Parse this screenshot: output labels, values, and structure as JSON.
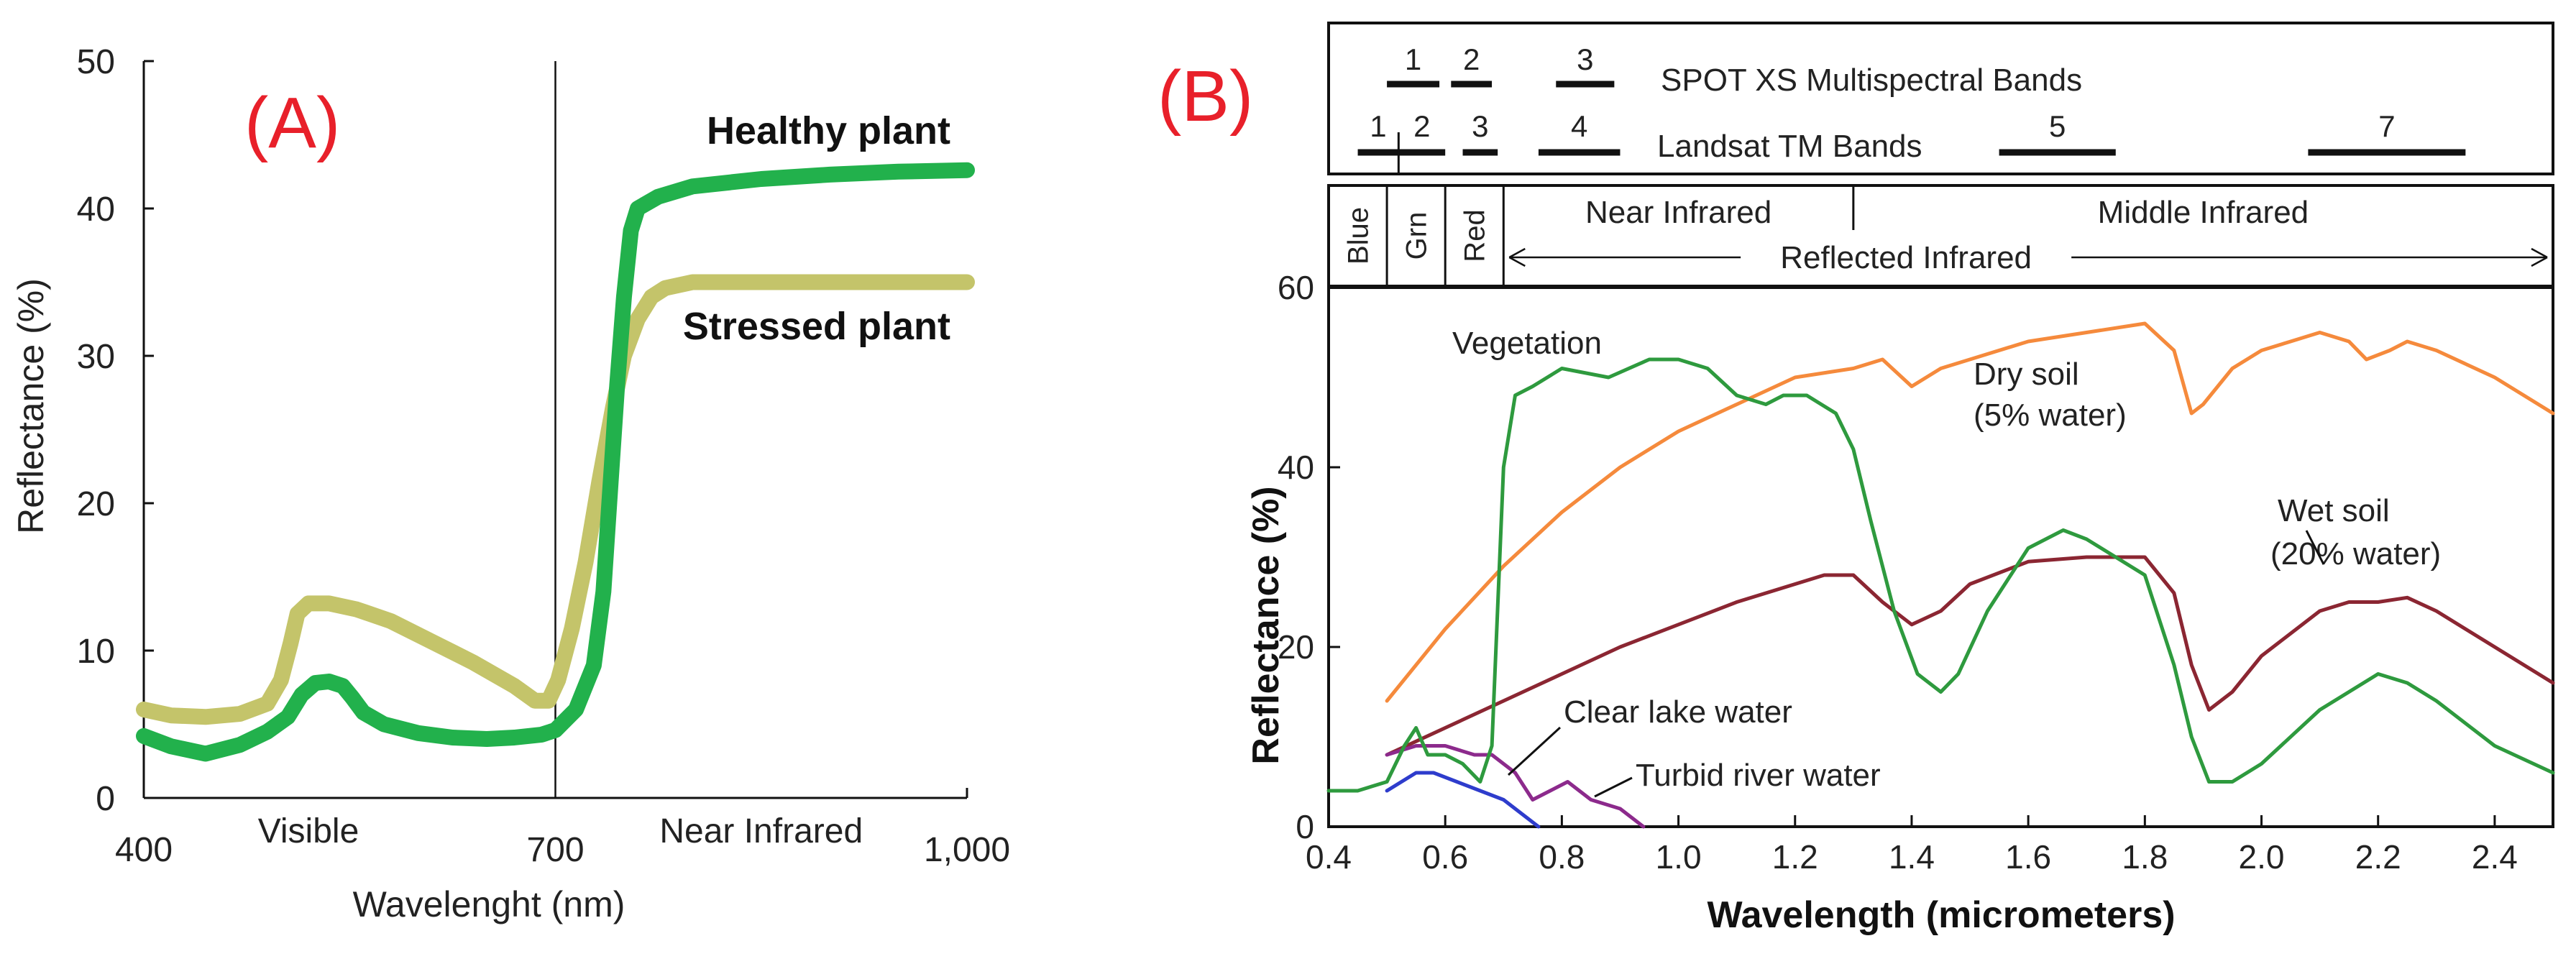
{
  "chart_data": [
    {
      "type": "line",
      "panel_label": "(A)",
      "xlabel": "Wavelenght (nm)",
      "ylabel": "Reflectance (%)",
      "xlim": [
        400,
        1000
      ],
      "ylim": [
        0,
        50
      ],
      "x_ticks": [
        400,
        700,
        1000
      ],
      "x_tick_labels": [
        "400",
        "700",
        "1,000"
      ],
      "y_ticks": [
        0,
        10,
        20,
        30,
        40,
        50
      ],
      "y_tick_labels": [
        "0",
        "10",
        "20",
        "30",
        "40",
        "50"
      ],
      "region_labels": [
        {
          "text": "Visible",
          "x": 520
        },
        {
          "text": "Near Infrared",
          "x": 850
        }
      ],
      "divider_x": 700,
      "series": [
        {
          "name": "Healthy plant",
          "color": "#22b14c",
          "x": [
            400,
            420,
            445,
            470,
            490,
            505,
            515,
            525,
            535,
            545,
            552,
            560,
            575,
            600,
            625,
            650,
            670,
            690,
            700,
            715,
            728,
            735,
            740,
            745,
            750,
            755,
            760,
            775,
            800,
            850,
            900,
            950,
            1000
          ],
          "values": [
            4.2,
            3.5,
            3.0,
            3.6,
            4.5,
            5.5,
            7.0,
            7.8,
            7.9,
            7.6,
            6.8,
            5.8,
            5.0,
            4.4,
            4.1,
            4.0,
            4.1,
            4.3,
            4.6,
            6.0,
            9.0,
            14.0,
            21.0,
            28.0,
            34.0,
            38.5,
            40.0,
            40.8,
            41.5,
            42.0,
            42.3,
            42.5,
            42.6
          ]
        },
        {
          "name": "Stressed plant",
          "color": "#c4c46a",
          "x": [
            400,
            420,
            445,
            470,
            490,
            500,
            507,
            512,
            520,
            535,
            555,
            580,
            610,
            640,
            670,
            685,
            695,
            702,
            712,
            722,
            732,
            742,
            750,
            760,
            770,
            780,
            800,
            850,
            900,
            1000
          ],
          "values": [
            6.0,
            5.6,
            5.5,
            5.7,
            6.4,
            8.0,
            10.5,
            12.5,
            13.2,
            13.2,
            12.8,
            12.0,
            10.6,
            9.2,
            7.6,
            6.6,
            6.6,
            8.0,
            11.5,
            16.0,
            21.5,
            26.5,
            30.0,
            32.5,
            34.0,
            34.6,
            35.0,
            35.0,
            35.0,
            35.0
          ]
        }
      ]
    },
    {
      "type": "line",
      "panel_label": "(B)",
      "xlabel": "Wavelength (micrometers)",
      "ylabel": "Reflectance (%)",
      "xlim": [
        0.4,
        2.5
      ],
      "ylim": [
        0,
        60
      ],
      "x_ticks": [
        0.4,
        0.6,
        0.8,
        1.0,
        1.2,
        1.4,
        1.6,
        1.8,
        2.0,
        2.2,
        2.4
      ],
      "x_tick_labels": [
        "0.4",
        "0.6",
        "0.8",
        "1.0",
        "1.2",
        "1.4",
        "1.6",
        "1.8",
        "2.0",
        "2.2",
        "2.4"
      ],
      "y_ticks": [
        0,
        20,
        40,
        60
      ],
      "y_tick_labels": [
        "0",
        "20",
        "40",
        "60"
      ],
      "spot_bands": {
        "title": "SPOT XS Multispectral Bands",
        "bands": [
          {
            "label": "1",
            "start": 0.5,
            "end": 0.59
          },
          {
            "label": "2",
            "start": 0.61,
            "end": 0.68
          },
          {
            "label": "3",
            "start": 0.79,
            "end": 0.89
          }
        ]
      },
      "landsat_bands": {
        "title": "Landsat TM Bands",
        "bands": [
          {
            "label": "1",
            "start": 0.45,
            "end": 0.52
          },
          {
            "label": "2",
            "start": 0.52,
            "end": 0.6
          },
          {
            "label": "3",
            "start": 0.63,
            "end": 0.69
          },
          {
            "label": "4",
            "start": 0.76,
            "end": 0.9
          },
          {
            "label": "5",
            "start": 1.55,
            "end": 1.75
          },
          {
            "label": "7",
            "start": 2.08,
            "end": 2.35
          }
        ]
      },
      "spectral_regions": {
        "blue": "Blue",
        "green": "Grn",
        "red": "Red",
        "near_infrared": "Near Infrared",
        "middle_infrared": "Middle Infrared",
        "reflected_infrared": "Reflected Infrared"
      },
      "region_bounds": [
        0.4,
        0.5,
        0.6,
        0.7,
        1.3,
        2.5
      ],
      "series": [
        {
          "name": "Vegetation",
          "color": "#2e9a3e",
          "x": [
            0.4,
            0.45,
            0.5,
            0.53,
            0.55,
            0.57,
            0.6,
            0.63,
            0.66,
            0.68,
            0.7,
            0.72,
            0.75,
            0.8,
            0.88,
            0.95,
            1.0,
            1.05,
            1.1,
            1.15,
            1.18,
            1.22,
            1.27,
            1.3,
            1.33,
            1.37,
            1.41,
            1.45,
            1.48,
            1.53,
            1.6,
            1.66,
            1.7,
            1.75,
            1.8,
            1.85,
            1.88,
            1.91,
            1.95,
            2.0,
            2.1,
            2.2,
            2.25,
            2.3,
            2.4,
            2.5
          ],
          "values": [
            4,
            4,
            5,
            9,
            11,
            8,
            8,
            7,
            5,
            9,
            40,
            48,
            49,
            51,
            50,
            52,
            52,
            51,
            48,
            47,
            48,
            48,
            46,
            42,
            34,
            24,
            17,
            15,
            17,
            24,
            31,
            33,
            32,
            30,
            28,
            18,
            10,
            5,
            5,
            7,
            13,
            17,
            16,
            14,
            9,
            6
          ]
        },
        {
          "name": "Dry soil",
          "label": "Dry soil",
          "sublabel": "(5% water)",
          "color": "#f58a3c",
          "x": [
            0.5,
            0.6,
            0.7,
            0.8,
            0.9,
            1.0,
            1.1,
            1.2,
            1.3,
            1.35,
            1.4,
            1.45,
            1.5,
            1.6,
            1.7,
            1.8,
            1.85,
            1.88,
            1.9,
            1.95,
            2.0,
            2.05,
            2.1,
            2.15,
            2.18,
            2.22,
            2.25,
            2.3,
            2.4,
            2.5
          ],
          "values": [
            14,
            22,
            29,
            35,
            40,
            44,
            47,
            50,
            51,
            52,
            49,
            51,
            52,
            54,
            55,
            56,
            53,
            46,
            47,
            51,
            53,
            54,
            55,
            54,
            52,
            53,
            54,
            53,
            50,
            46
          ]
        },
        {
          "name": "Wet soil",
          "label": "Wet soil",
          "sublabel": "(20% water)",
          "color": "#8b2632",
          "x": [
            0.5,
            0.6,
            0.7,
            0.8,
            0.9,
            1.0,
            1.1,
            1.2,
            1.25,
            1.3,
            1.35,
            1.4,
            1.45,
            1.5,
            1.6,
            1.7,
            1.8,
            1.85,
            1.88,
            1.91,
            1.95,
            2.0,
            2.1,
            2.15,
            2.2,
            2.25,
            2.3,
            2.4,
            2.5
          ],
          "values": [
            8,
            11,
            14,
            17,
            20,
            22.5,
            25,
            27,
            28,
            28,
            25,
            22.5,
            24,
            27,
            29.5,
            30,
            30,
            26,
            18,
            13,
            15,
            19,
            24,
            25,
            25,
            25.5,
            24,
            20,
            16
          ]
        },
        {
          "name": "Clear lake water",
          "color": "#2e3ccc",
          "x": [
            0.5,
            0.55,
            0.58,
            0.62,
            0.66,
            0.7,
            0.74,
            0.76
          ],
          "values": [
            4,
            6,
            6,
            5,
            4,
            3,
            1,
            0
          ]
        },
        {
          "name": "Turbid river water",
          "color": "#8c2a8c",
          "x": [
            0.5,
            0.55,
            0.6,
            0.65,
            0.68,
            0.72,
            0.75,
            0.78,
            0.81,
            0.85,
            0.9,
            0.94
          ],
          "values": [
            8,
            9,
            9,
            8,
            8,
            6,
            3,
            4,
            5,
            3,
            2,
            0
          ]
        }
      ]
    }
  ]
}
